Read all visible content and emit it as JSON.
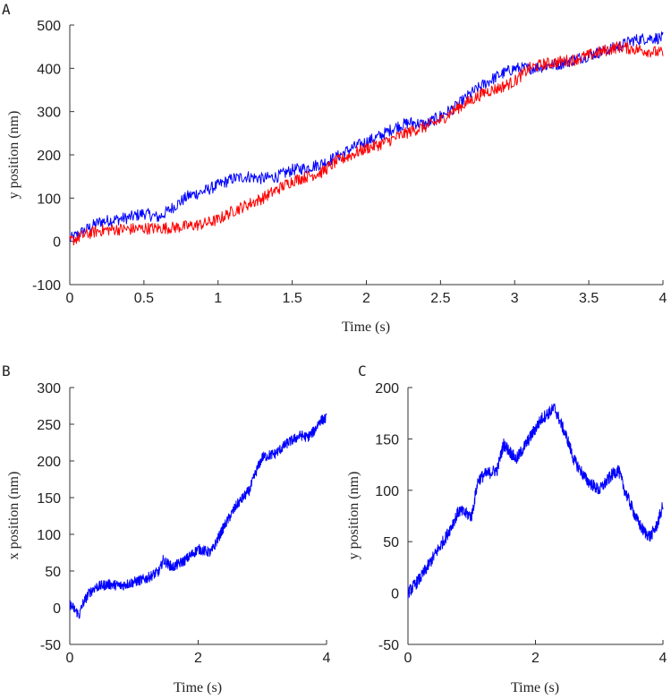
{
  "chart_data": [
    {
      "panel": "A",
      "type": "line",
      "title": "",
      "xlabel": "Time (s)",
      "ylabel": "y position (nm)",
      "xlim": [
        0,
        4
      ],
      "ylim": [
        -100,
        500
      ],
      "xticks": [
        "0",
        "0.5",
        "1",
        "1.5",
        "2",
        "2.5",
        "3",
        "3.5",
        "4"
      ],
      "yticks": [
        "-100",
        "0",
        "100",
        "200",
        "300",
        "400",
        "500"
      ],
      "grid": false,
      "series": [
        {
          "color": "#0000ff",
          "noise": 14,
          "x": [
            0,
            0.1,
            0.2,
            0.3,
            0.4,
            0.5,
            0.6,
            0.7,
            0.8,
            0.9,
            1.0,
            1.1,
            1.2,
            1.3,
            1.4,
            1.5,
            1.6,
            1.7,
            1.8,
            1.9,
            2.0,
            2.1,
            2.2,
            2.3,
            2.4,
            2.5,
            2.6,
            2.7,
            2.8,
            2.9,
            3.0,
            3.1,
            3.2,
            3.3,
            3.4,
            3.5,
            3.6,
            3.7,
            3.8,
            3.9,
            4.0
          ],
          "y": [
            5,
            25,
            45,
            50,
            55,
            65,
            55,
            80,
            105,
            115,
            130,
            145,
            150,
            145,
            150,
            165,
            170,
            180,
            195,
            215,
            230,
            245,
            265,
            275,
            270,
            290,
            310,
            340,
            365,
            385,
            400,
            400,
            405,
            410,
            420,
            430,
            440,
            450,
            465,
            470,
            470
          ]
        },
        {
          "color": "#ff0000",
          "noise": 14,
          "x": [
            0,
            0.1,
            0.2,
            0.3,
            0.4,
            0.5,
            0.6,
            0.7,
            0.8,
            0.9,
            1.0,
            1.1,
            1.2,
            1.3,
            1.4,
            1.5,
            1.6,
            1.7,
            1.8,
            1.9,
            2.0,
            2.1,
            2.2,
            2.3,
            2.4,
            2.5,
            2.6,
            2.7,
            2.8,
            2.9,
            3.0,
            3.1,
            3.2,
            3.3,
            3.4,
            3.5,
            3.6,
            3.7,
            3.8,
            3.9,
            4.0
          ],
          "y": [
            0,
            15,
            25,
            28,
            28,
            30,
            30,
            32,
            35,
            40,
            50,
            70,
            85,
            100,
            120,
            140,
            150,
            160,
            185,
            200,
            215,
            225,
            240,
            255,
            265,
            280,
            305,
            325,
            345,
            355,
            370,
            400,
            410,
            415,
            420,
            430,
            440,
            450,
            445,
            440,
            435
          ]
        }
      ]
    },
    {
      "panel": "B",
      "type": "line",
      "title": "",
      "xlabel": "Time (s)",
      "ylabel": "x position (nm)",
      "xlim": [
        0,
        4
      ],
      "ylim": [
        -50,
        300
      ],
      "xticks": [
        "0",
        "2",
        "4"
      ],
      "yticks": [
        "-50",
        "0",
        "50",
        "100",
        "150",
        "200",
        "250",
        "300"
      ],
      "grid": false,
      "series": [
        {
          "color": "#0000ff",
          "noise": 7,
          "x": [
            0,
            0.1,
            0.15,
            0.2,
            0.3,
            0.4,
            0.6,
            0.8,
            1.0,
            1.2,
            1.4,
            1.45,
            1.6,
            1.8,
            2.0,
            2.2,
            2.4,
            2.6,
            2.8,
            2.9,
            3.0,
            3.2,
            3.4,
            3.6,
            3.7,
            3.8,
            3.9,
            4.0
          ],
          "y": [
            5,
            -5,
            -10,
            5,
            20,
            28,
            32,
            30,
            35,
            40,
            50,
            65,
            55,
            65,
            80,
            75,
            110,
            140,
            160,
            185,
            205,
            210,
            225,
            235,
            232,
            240,
            255,
            258
          ]
        }
      ]
    },
    {
      "panel": "C",
      "type": "line",
      "title": "",
      "xlabel": "Time (s)",
      "ylabel": "y position (nm)",
      "xlim": [
        0,
        4
      ],
      "ylim": [
        -50,
        200
      ],
      "xticks": [
        "0",
        "2",
        "4"
      ],
      "yticks": [
        "-50",
        "0",
        "50",
        "100",
        "150",
        "200"
      ],
      "grid": false,
      "series": [
        {
          "color": "#0000ff",
          "noise": 6,
          "x": [
            0,
            0.2,
            0.4,
            0.6,
            0.8,
            1.0,
            1.1,
            1.2,
            1.4,
            1.5,
            1.7,
            1.9,
            2.1,
            2.3,
            2.5,
            2.6,
            2.8,
            3.0,
            3.2,
            3.3,
            3.4,
            3.6,
            3.7,
            3.8,
            3.9,
            4.0
          ],
          "y": [
            0,
            15,
            35,
            55,
            80,
            75,
            110,
            115,
            120,
            145,
            130,
            150,
            170,
            180,
            150,
            130,
            110,
            100,
            115,
            120,
            100,
            70,
            60,
            55,
            65,
            85
          ]
        }
      ]
    }
  ]
}
